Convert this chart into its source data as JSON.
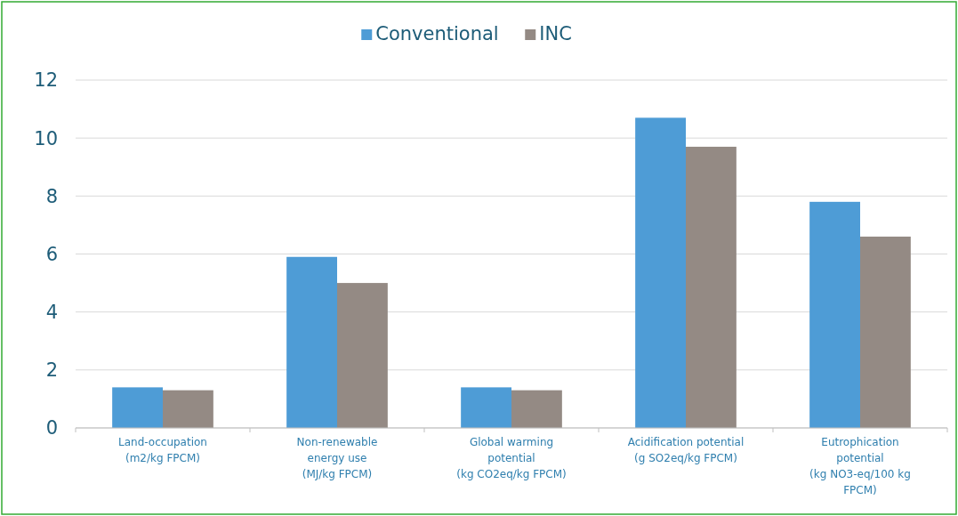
{
  "chart_data": {
    "type": "bar",
    "categories": [
      "Land-occupation\n(m2/kg FPCM)",
      "Non-renewable\nenergy use\n(MJ/kg FPCM)",
      "Global warming\npotential\n(kg CO2eq/kg FPCM)",
      "Acidification potential\n(g SO2eq/kg FPCM)",
      "Eutrophication\npotential\n(kg NO3-eq/100 kg\nFPCM)"
    ],
    "series": [
      {
        "name": "Conventional",
        "color": "#4e9cd6",
        "values": [
          1.4,
          5.9,
          1.4,
          10.7,
          7.8
        ]
      },
      {
        "name": "INC",
        "color": "#948a84",
        "values": [
          1.3,
          5.0,
          1.3,
          9.7,
          6.6
        ]
      }
    ],
    "ylim": [
      0,
      12
    ],
    "yticks": [
      0,
      2,
      4,
      6,
      8,
      10,
      12
    ],
    "grid": "y",
    "legend": "top"
  }
}
